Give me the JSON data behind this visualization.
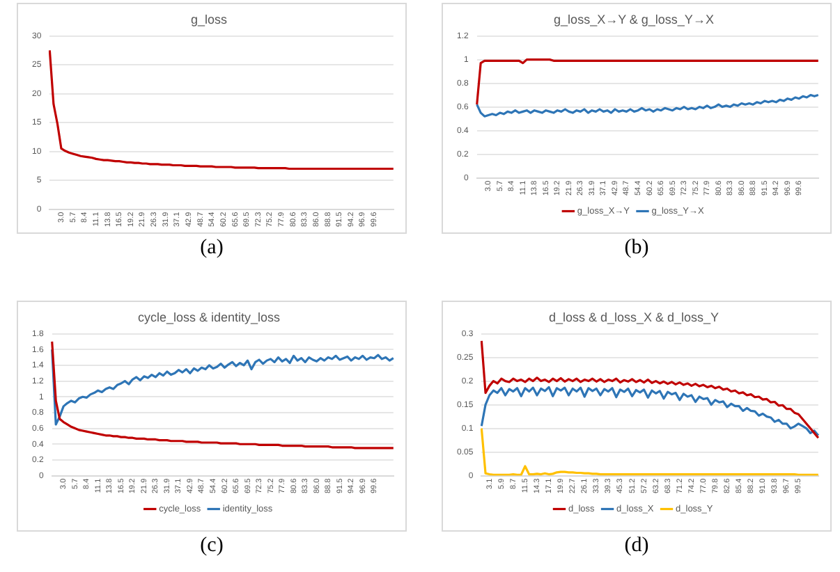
{
  "chart_data": [
    {
      "type": "line",
      "title": "g_loss",
      "grid": "y",
      "legend": false,
      "marker": "none",
      "annotations": [
        "(a)"
      ],
      "categories": [
        null,
        null,
        null,
        "3.0",
        null,
        null,
        "5.7",
        null,
        null,
        "8.4",
        null,
        null,
        "11.1",
        null,
        null,
        "13.8",
        null,
        null,
        "16.5",
        null,
        null,
        "19.2",
        null,
        null,
        "21.9",
        null,
        null,
        "26.3",
        null,
        null,
        "31.9",
        null,
        null,
        "37.1",
        null,
        null,
        "42.9",
        null,
        null,
        "48.7",
        null,
        null,
        "54.4",
        null,
        null,
        "60.2",
        null,
        null,
        "65.6",
        null,
        null,
        "69.5",
        null,
        null,
        "72.3",
        null,
        null,
        "75.2",
        null,
        null,
        "77.9",
        null,
        null,
        "80.6",
        null,
        null,
        "83.3",
        null,
        null,
        "86.0",
        null,
        null,
        "88.8",
        null,
        null,
        "91.5",
        null,
        null,
        "94.2",
        null,
        null,
        "96.9",
        null,
        null,
        "99.6",
        null,
        null,
        null,
        null,
        null
      ],
      "ylim": [
        0,
        30
      ],
      "yticks": [
        0,
        5,
        10,
        15,
        20,
        25,
        30
      ],
      "series": [
        {
          "color": "#c00000",
          "values": [
            27.5,
            18.2,
            14.8,
            10.5,
            10.1,
            9.8,
            9.6,
            9.4,
            9.2,
            9.1,
            9.0,
            8.9,
            8.7,
            8.6,
            8.5,
            8.5,
            8.4,
            8.3,
            8.3,
            8.2,
            8.1,
            8.1,
            8.0,
            8.0,
            7.9,
            7.9,
            7.8,
            7.8,
            7.8,
            7.7,
            7.7,
            7.7,
            7.6,
            7.6,
            7.6,
            7.5,
            7.5,
            7.5,
            7.5,
            7.4,
            7.4,
            7.4,
            7.4,
            7.3,
            7.3,
            7.3,
            7.3,
            7.3,
            7.2,
            7.2,
            7.2,
            7.2,
            7.2,
            7.2,
            7.1,
            7.1,
            7.1,
            7.1,
            7.1,
            7.1,
            7.1,
            7.1,
            7.0,
            7.0,
            7.0,
            7.0,
            7.0,
            7.0,
            7.0,
            7.0,
            7.0,
            7.0,
            7.0,
            7.0,
            7.0,
            7.0,
            7.0,
            7.0,
            7.0,
            7.0,
            7.0,
            7.0,
            7.0,
            7.0,
            7.0,
            7.0,
            7.0,
            7.0,
            7.0,
            7.0
          ]
        }
      ]
    },
    {
      "type": "line",
      "title": "g_loss_X→Y & g_loss_Y→X",
      "grid": "y",
      "legend": "bottom",
      "marker": "none",
      "annotations": [
        "(b)"
      ],
      "categories": [
        null,
        null,
        null,
        "3.0",
        null,
        null,
        "5.7",
        null,
        null,
        "8.4",
        null,
        null,
        "11.1",
        null,
        null,
        "13.8",
        null,
        null,
        "16.5",
        null,
        null,
        "19.2",
        null,
        null,
        "21.9",
        null,
        null,
        "26.3",
        null,
        null,
        "31.9",
        null,
        null,
        "37.1",
        null,
        null,
        "42.9",
        null,
        null,
        "48.7",
        null,
        null,
        "54.4",
        null,
        null,
        "60.2",
        null,
        null,
        "65.6",
        null,
        null,
        "69.5",
        null,
        null,
        "72.3",
        null,
        null,
        "75.2",
        null,
        null,
        "77.9",
        null,
        null,
        "80.6",
        null,
        null,
        "83.3",
        null,
        null,
        "86.0",
        null,
        null,
        "88.8",
        null,
        null,
        "91.5",
        null,
        null,
        "94.2",
        null,
        null,
        "96.9",
        null,
        null,
        "99.6",
        null,
        null,
        null,
        null,
        null
      ],
      "ylim": [
        0,
        1.2
      ],
      "yticks": [
        0,
        0.2,
        0.4,
        0.6,
        0.8,
        1,
        1.2
      ],
      "series": [
        {
          "name": "g_loss_X→Y",
          "color": "#c00000",
          "values": [
            0.62,
            0.97,
            0.99,
            0.99,
            0.99,
            0.99,
            0.99,
            0.99,
            0.99,
            0.99,
            0.99,
            0.99,
            0.97,
            1,
            1,
            1,
            1,
            1,
            1,
            1,
            0.99,
            0.99,
            0.99,
            0.99,
            0.99,
            0.99,
            0.99,
            0.99,
            0.99,
            0.99,
            0.99,
            0.99,
            0.99,
            0.99,
            0.99,
            0.99,
            0.99,
            0.99,
            0.99,
            0.99,
            0.99,
            0.99,
            0.99,
            0.99,
            0.99,
            0.99,
            0.99,
            0.99,
            0.99,
            0.99,
            0.99,
            0.99,
            0.99,
            0.99,
            0.99,
            0.99,
            0.99,
            0.99,
            0.99,
            0.99,
            0.99,
            0.99,
            0.99,
            0.99,
            0.99,
            0.99,
            0.99,
            0.99,
            0.99,
            0.99,
            0.99,
            0.99,
            0.99,
            0.99,
            0.99,
            0.99,
            0.99,
            0.99,
            0.99,
            0.99,
            0.99,
            0.99,
            0.99,
            0.99,
            0.99,
            0.99,
            0.99,
            0.99,
            0.99,
            0.99
          ]
        },
        {
          "name": "g_loss_Y→X",
          "color": "#2e75b6",
          "values": [
            0.62,
            0.55,
            0.52,
            0.53,
            0.54,
            0.53,
            0.55,
            0.54,
            0.56,
            0.55,
            0.57,
            0.55,
            0.56,
            0.57,
            0.55,
            0.57,
            0.56,
            0.55,
            0.57,
            0.56,
            0.55,
            0.57,
            0.56,
            0.58,
            0.56,
            0.55,
            0.57,
            0.56,
            0.58,
            0.55,
            0.57,
            0.56,
            0.58,
            0.56,
            0.57,
            0.55,
            0.58,
            0.56,
            0.57,
            0.56,
            0.58,
            0.56,
            0.57,
            0.59,
            0.57,
            0.58,
            0.56,
            0.58,
            0.57,
            0.59,
            0.58,
            0.57,
            0.59,
            0.58,
            0.6,
            0.58,
            0.59,
            0.58,
            0.6,
            0.59,
            0.61,
            0.59,
            0.6,
            0.62,
            0.6,
            0.61,
            0.6,
            0.62,
            0.61,
            0.63,
            0.62,
            0.63,
            0.62,
            0.64,
            0.63,
            0.65,
            0.64,
            0.65,
            0.64,
            0.66,
            0.65,
            0.67,
            0.66,
            0.68,
            0.67,
            0.69,
            0.68,
            0.7,
            0.69,
            0.7
          ]
        }
      ]
    },
    {
      "type": "line",
      "title": "cycle_loss & identity_loss",
      "grid": "y",
      "legend": "bottom",
      "marker": "none",
      "annotations": [
        "(c)"
      ],
      "categories": [
        null,
        null,
        null,
        "3.0",
        null,
        null,
        "5.7",
        null,
        null,
        "8.4",
        null,
        null,
        "11.1",
        null,
        null,
        "13.8",
        null,
        null,
        "16.5",
        null,
        null,
        "19.2",
        null,
        null,
        "21.9",
        null,
        null,
        "26.3",
        null,
        null,
        "31.9",
        null,
        null,
        "37.1",
        null,
        null,
        "42.9",
        null,
        null,
        "48.7",
        null,
        null,
        "54.4",
        null,
        null,
        "60.2",
        null,
        null,
        "65.6",
        null,
        null,
        "69.5",
        null,
        null,
        "72.3",
        null,
        null,
        "75.2",
        null,
        null,
        "77.9",
        null,
        null,
        "80.6",
        null,
        null,
        "83.3",
        null,
        null,
        "86.0",
        null,
        null,
        "88.8",
        null,
        null,
        "91.5",
        null,
        null,
        "94.2",
        null,
        null,
        "96.9",
        null,
        null,
        "99.6",
        null,
        null,
        null,
        null,
        null
      ],
      "ylim": [
        0,
        1.8
      ],
      "yticks": [
        0,
        0.2,
        0.4,
        0.6,
        0.8,
        1,
        1.2,
        1.4,
        1.6,
        1.8
      ],
      "series": [
        {
          "name": "cycle_loss",
          "color": "#c00000",
          "values": [
            1.7,
            0.95,
            0.72,
            0.68,
            0.65,
            0.62,
            0.6,
            0.58,
            0.57,
            0.56,
            0.55,
            0.54,
            0.53,
            0.52,
            0.51,
            0.51,
            0.5,
            0.5,
            0.49,
            0.49,
            0.48,
            0.48,
            0.47,
            0.47,
            0.47,
            0.46,
            0.46,
            0.46,
            0.45,
            0.45,
            0.45,
            0.44,
            0.44,
            0.44,
            0.44,
            0.43,
            0.43,
            0.43,
            0.43,
            0.42,
            0.42,
            0.42,
            0.42,
            0.42,
            0.41,
            0.41,
            0.41,
            0.41,
            0.41,
            0.4,
            0.4,
            0.4,
            0.4,
            0.4,
            0.39,
            0.39,
            0.39,
            0.39,
            0.39,
            0.39,
            0.38,
            0.38,
            0.38,
            0.38,
            0.38,
            0.38,
            0.37,
            0.37,
            0.37,
            0.37,
            0.37,
            0.37,
            0.37,
            0.36,
            0.36,
            0.36,
            0.36,
            0.36,
            0.36,
            0.35,
            0.35,
            0.35,
            0.35,
            0.35,
            0.35,
            0.35,
            0.35,
            0.35,
            0.35,
            0.35
          ]
        },
        {
          "name": "identity_loss",
          "color": "#2e75b6",
          "values": [
            1.6,
            0.65,
            0.75,
            0.88,
            0.92,
            0.95,
            0.93,
            0.98,
            1.0,
            0.99,
            1.03,
            1.05,
            1.08,
            1.06,
            1.1,
            1.12,
            1.1,
            1.15,
            1.17,
            1.2,
            1.16,
            1.22,
            1.25,
            1.21,
            1.26,
            1.24,
            1.28,
            1.25,
            1.3,
            1.27,
            1.32,
            1.28,
            1.3,
            1.34,
            1.31,
            1.35,
            1.3,
            1.36,
            1.33,
            1.37,
            1.35,
            1.4,
            1.36,
            1.38,
            1.42,
            1.37,
            1.41,
            1.44,
            1.39,
            1.43,
            1.4,
            1.46,
            1.35,
            1.44,
            1.47,
            1.42,
            1.46,
            1.48,
            1.44,
            1.5,
            1.45,
            1.48,
            1.43,
            1.52,
            1.46,
            1.49,
            1.44,
            1.5,
            1.47,
            1.45,
            1.49,
            1.46,
            1.5,
            1.48,
            1.52,
            1.47,
            1.49,
            1.51,
            1.46,
            1.5,
            1.48,
            1.52,
            1.47,
            1.5,
            1.49,
            1.53,
            1.48,
            1.5,
            1.46,
            1.49
          ]
        }
      ]
    },
    {
      "type": "line",
      "title": "d_loss & d_loss_X & d_loss_Y",
      "grid": "y",
      "legend": "bottom",
      "marker": "none",
      "annotations": [
        "(d)"
      ],
      "categories": [
        null,
        null,
        "3.1",
        null,
        null,
        "5.9",
        null,
        null,
        "8.7",
        null,
        null,
        "11.5",
        null,
        null,
        "14.3",
        null,
        null,
        "17.1",
        null,
        null,
        "19.9",
        null,
        null,
        "22.7",
        null,
        null,
        "26.1",
        null,
        null,
        "33.3",
        null,
        null,
        "39.3",
        null,
        null,
        "45.3",
        null,
        null,
        "51.2",
        null,
        null,
        "57.2",
        null,
        null,
        "63.2",
        null,
        null,
        "68.3",
        null,
        null,
        "71.2",
        null,
        null,
        "74.2",
        null,
        null,
        "77.0",
        null,
        null,
        "79.8",
        null,
        null,
        "82.6",
        null,
        null,
        "85.4",
        null,
        null,
        "88.2",
        null,
        null,
        "91.0",
        null,
        null,
        "93.8",
        null,
        null,
        "96.7",
        null,
        null,
        "99.5",
        null,
        null,
        null,
        null,
        null
      ],
      "ylim": [
        0,
        0.3
      ],
      "yticks": [
        0,
        0.05,
        0.1,
        0.15,
        0.2,
        0.25,
        0.3
      ],
      "series": [
        {
          "name": "d_loss",
          "color": "#c00000",
          "values": [
            0.285,
            0.175,
            0.19,
            0.2,
            0.195,
            0.205,
            0.2,
            0.198,
            0.205,
            0.2,
            0.203,
            0.198,
            0.205,
            0.2,
            0.207,
            0.2,
            0.203,
            0.198,
            0.205,
            0.2,
            0.206,
            0.199,
            0.204,
            0.2,
            0.205,
            0.198,
            0.203,
            0.2,
            0.205,
            0.199,
            0.204,
            0.198,
            0.203,
            0.2,
            0.205,
            0.197,
            0.202,
            0.199,
            0.204,
            0.198,
            0.202,
            0.197,
            0.203,
            0.196,
            0.2,
            0.195,
            0.199,
            0.194,
            0.198,
            0.193,
            0.197,
            0.192,
            0.195,
            0.19,
            0.194,
            0.189,
            0.192,
            0.187,
            0.19,
            0.185,
            0.188,
            0.182,
            0.184,
            0.178,
            0.18,
            0.174,
            0.176,
            0.17,
            0.172,
            0.166,
            0.167,
            0.161,
            0.162,
            0.155,
            0.156,
            0.148,
            0.149,
            0.141,
            0.141,
            0.133,
            0.13,
            0.12,
            0.11,
            0.1,
            0.09,
            0.08
          ]
        },
        {
          "name": "d_loss_X",
          "color": "#2e75b6",
          "values": [
            0.105,
            0.15,
            0.17,
            0.18,
            0.175,
            0.185,
            0.17,
            0.183,
            0.178,
            0.185,
            0.168,
            0.185,
            0.178,
            0.186,
            0.17,
            0.184,
            0.179,
            0.187,
            0.168,
            0.185,
            0.18,
            0.186,
            0.17,
            0.184,
            0.178,
            0.186,
            0.167,
            0.185,
            0.179,
            0.184,
            0.17,
            0.183,
            0.178,
            0.185,
            0.166,
            0.182,
            0.177,
            0.184,
            0.168,
            0.181,
            0.176,
            0.182,
            0.165,
            0.18,
            0.174,
            0.179,
            0.163,
            0.177,
            0.172,
            0.175,
            0.16,
            0.173,
            0.167,
            0.17,
            0.156,
            0.167,
            0.162,
            0.164,
            0.15,
            0.16,
            0.155,
            0.157,
            0.145,
            0.152,
            0.147,
            0.147,
            0.137,
            0.143,
            0.137,
            0.136,
            0.127,
            0.131,
            0.125,
            0.123,
            0.114,
            0.118,
            0.11,
            0.11,
            0.1,
            0.104,
            0.11,
            0.105,
            0.1,
            0.09,
            0.095,
            0.085
          ]
        },
        {
          "name": "d_loss_Y",
          "color": "#ffc000",
          "values": [
            0.1,
            0.005,
            0.003,
            0.002,
            0.002,
            0.002,
            0.002,
            0.002,
            0.003,
            0.002,
            0.002,
            0.02,
            0.003,
            0.003,
            0.004,
            0.003,
            0.005,
            0.003,
            0.004,
            0.007,
            0.008,
            0.008,
            0.007,
            0.007,
            0.006,
            0.006,
            0.005,
            0.005,
            0.004,
            0.004,
            0.003,
            0.003,
            0.003,
            0.003,
            0.003,
            0.003,
            0.003,
            0.003,
            0.003,
            0.003,
            0.003,
            0.003,
            0.003,
            0.003,
            0.003,
            0.003,
            0.003,
            0.003,
            0.003,
            0.003,
            0.003,
            0.003,
            0.003,
            0.003,
            0.003,
            0.003,
            0.003,
            0.003,
            0.003,
            0.003,
            0.003,
            0.003,
            0.003,
            0.003,
            0.003,
            0.003,
            0.003,
            0.003,
            0.003,
            0.003,
            0.003,
            0.003,
            0.003,
            0.003,
            0.003,
            0.003,
            0.003,
            0.003,
            0.003,
            0.003,
            0.002,
            0.002,
            0.002,
            0.002,
            0.002,
            0.002
          ]
        }
      ]
    }
  ]
}
